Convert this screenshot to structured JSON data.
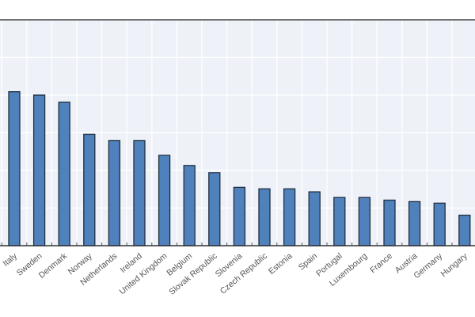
{
  "chart_data": {
    "type": "bar",
    "title": "",
    "xlabel": "",
    "ylabel": "",
    "categories": [
      "Italy",
      "Sweden",
      "Denmark",
      "Norway",
      "Netherlands",
      "Ireland",
      "United Kingdom",
      "Belgium",
      "Slovak Republic",
      "Slovenia",
      "Czech Republic",
      "Estonia",
      "Spain",
      "Portugal",
      "Luxembourg",
      "France",
      "Austria",
      "Germany",
      "Hungary"
    ],
    "values": [
      4.09,
      4.0,
      3.81,
      2.96,
      2.79,
      2.79,
      2.4,
      2.13,
      1.94,
      1.55,
      1.51,
      1.51,
      1.43,
      1.28,
      1.28,
      1.21,
      1.17,
      1.13,
      0.81
    ],
    "ylim": [
      0,
      6
    ],
    "grid": true,
    "bar_color": "#4f81bd",
    "plot_background": "#eef2f8"
  }
}
